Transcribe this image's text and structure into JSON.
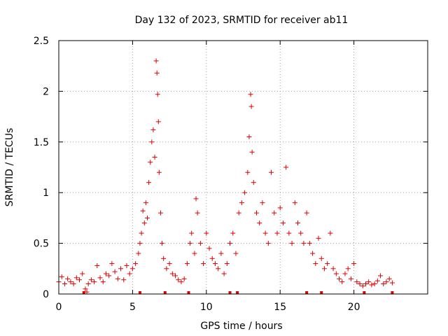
{
  "chart_data": {
    "type": "scatter",
    "title": "Day 132 of 2023, SRMTID for receiver ab11",
    "xlabel": "GPS time / hours",
    "ylabel": "SRMTID / TECUs",
    "xlim": [
      0,
      25
    ],
    "ylim": [
      0,
      2.5
    ],
    "xticks": [
      0,
      5,
      10,
      15,
      20
    ],
    "xtick_labels": [
      "0",
      "5",
      "10",
      "15",
      "20"
    ],
    "yticks": [
      0,
      0.5,
      1,
      1.5,
      2,
      2.5
    ],
    "ytick_labels": [
      "0",
      "0.5",
      "1",
      "1.5",
      "2",
      "2.5"
    ],
    "grid": true,
    "marker": "+",
    "series": [
      {
        "name": "SRMTID",
        "color": "#e00000",
        "points": [
          [
            0.0,
            0.12
          ],
          [
            0.2,
            0.17
          ],
          [
            0.4,
            0.1
          ],
          [
            0.6,
            0.15
          ],
          [
            0.8,
            0.12
          ],
          [
            1.0,
            0.1
          ],
          [
            1.2,
            0.16
          ],
          [
            1.4,
            0.14
          ],
          [
            1.6,
            0.2
          ],
          [
            1.8,
            0.05
          ],
          [
            1.9,
            0.02
          ],
          [
            2.0,
            0.1
          ],
          [
            2.2,
            0.14
          ],
          [
            2.4,
            0.12
          ],
          [
            2.6,
            0.28
          ],
          [
            2.8,
            0.16
          ],
          [
            3.0,
            0.12
          ],
          [
            3.2,
            0.2
          ],
          [
            3.4,
            0.18
          ],
          [
            3.6,
            0.3
          ],
          [
            3.8,
            0.22
          ],
          [
            4.0,
            0.15
          ],
          [
            4.2,
            0.25
          ],
          [
            4.4,
            0.14
          ],
          [
            4.6,
            0.28
          ],
          [
            4.8,
            0.2
          ],
          [
            5.0,
            0.25
          ],
          [
            5.2,
            0.3
          ],
          [
            5.4,
            0.4
          ],
          [
            5.5,
            0.5
          ],
          [
            5.6,
            0.6
          ],
          [
            5.7,
            0.82
          ],
          [
            5.8,
            0.7
          ],
          [
            5.9,
            0.9
          ],
          [
            6.0,
            0.75
          ],
          [
            6.1,
            1.1
          ],
          [
            6.2,
            1.3
          ],
          [
            6.3,
            1.5
          ],
          [
            6.4,
            1.62
          ],
          [
            6.5,
            1.35
          ],
          [
            6.6,
            2.3
          ],
          [
            6.65,
            2.18
          ],
          [
            6.7,
            1.97
          ],
          [
            6.75,
            1.7
          ],
          [
            6.8,
            1.2
          ],
          [
            6.9,
            0.8
          ],
          [
            7.0,
            0.5
          ],
          [
            7.1,
            0.35
          ],
          [
            7.3,
            0.25
          ],
          [
            7.5,
            0.3
          ],
          [
            7.7,
            0.2
          ],
          [
            7.9,
            0.18
          ],
          [
            8.1,
            0.14
          ],
          [
            8.3,
            0.12
          ],
          [
            8.5,
            0.15
          ],
          [
            8.7,
            0.3
          ],
          [
            8.9,
            0.5
          ],
          [
            9.0,
            0.6
          ],
          [
            9.2,
            0.4
          ],
          [
            9.3,
            0.94
          ],
          [
            9.4,
            0.8
          ],
          [
            9.6,
            0.5
          ],
          [
            9.8,
            0.3
          ],
          [
            10.0,
            0.6
          ],
          [
            10.2,
            0.45
          ],
          [
            10.4,
            0.35
          ],
          [
            10.6,
            0.3
          ],
          [
            10.8,
            0.25
          ],
          [
            11.0,
            0.4
          ],
          [
            11.2,
            0.2
          ],
          [
            11.4,
            0.3
          ],
          [
            11.6,
            0.5
          ],
          [
            11.8,
            0.6
          ],
          [
            12.0,
            0.4
          ],
          [
            12.2,
            0.8
          ],
          [
            12.4,
            0.9
          ],
          [
            12.6,
            1.0
          ],
          [
            12.8,
            1.2
          ],
          [
            12.9,
            1.55
          ],
          [
            13.0,
            1.97
          ],
          [
            13.05,
            1.85
          ],
          [
            13.1,
            1.4
          ],
          [
            13.2,
            1.1
          ],
          [
            13.4,
            0.8
          ],
          [
            13.6,
            0.7
          ],
          [
            13.8,
            0.9
          ],
          [
            14.0,
            0.6
          ],
          [
            14.2,
            0.5
          ],
          [
            14.4,
            1.2
          ],
          [
            14.6,
            0.8
          ],
          [
            14.8,
            0.6
          ],
          [
            15.0,
            0.85
          ],
          [
            15.2,
            0.7
          ],
          [
            15.4,
            1.25
          ],
          [
            15.6,
            0.6
          ],
          [
            15.8,
            0.5
          ],
          [
            16.0,
            0.9
          ],
          [
            16.2,
            0.7
          ],
          [
            16.4,
            0.6
          ],
          [
            16.6,
            0.5
          ],
          [
            16.8,
            0.8
          ],
          [
            17.0,
            0.5
          ],
          [
            17.2,
            0.4
          ],
          [
            17.4,
            0.3
          ],
          [
            17.6,
            0.55
          ],
          [
            17.8,
            0.35
          ],
          [
            18.0,
            0.25
          ],
          [
            18.2,
            0.3
          ],
          [
            18.4,
            0.6
          ],
          [
            18.6,
            0.25
          ],
          [
            18.8,
            0.2
          ],
          [
            19.0,
            0.15
          ],
          [
            19.2,
            0.12
          ],
          [
            19.4,
            0.2
          ],
          [
            19.6,
            0.25
          ],
          [
            19.8,
            0.15
          ],
          [
            20.0,
            0.3
          ],
          [
            20.2,
            0.12
          ],
          [
            20.4,
            0.1
          ],
          [
            20.6,
            0.08
          ],
          [
            20.8,
            0.1
          ],
          [
            21.0,
            0.12
          ],
          [
            21.2,
            0.09
          ],
          [
            21.4,
            0.1
          ],
          [
            21.6,
            0.13
          ],
          [
            21.8,
            0.18
          ],
          [
            22.0,
            0.1
          ],
          [
            22.2,
            0.12
          ],
          [
            22.4,
            0.15
          ],
          [
            22.6,
            0.11
          ]
        ]
      }
    ],
    "baseline_markers_x": [
      1.7,
      5.5,
      7.2,
      8.8,
      11.6,
      12.1,
      16.8,
      17.8,
      20.7,
      22.6
    ]
  }
}
